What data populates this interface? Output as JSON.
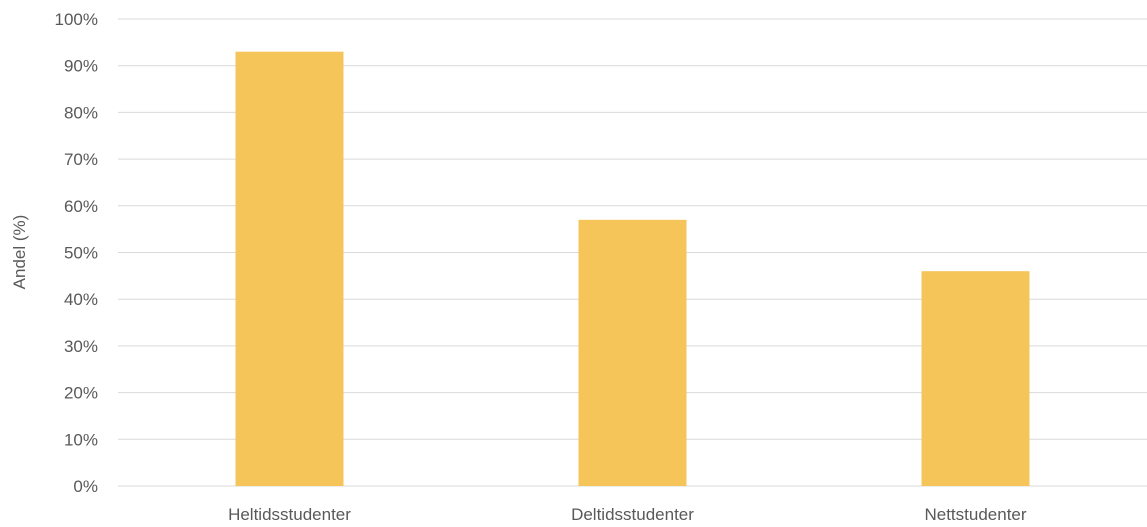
{
  "chart_data": {
    "type": "bar",
    "title": "",
    "xlabel": "",
    "ylabel": "Andel (%)",
    "categories": [
      "Heltidsstudenter",
      "Deltidsstudenter",
      "Nettstudenter"
    ],
    "values": [
      93,
      57,
      46
    ],
    "ylim": [
      0,
      100
    ],
    "yticks": [
      0,
      10,
      20,
      30,
      40,
      50,
      60,
      70,
      80,
      90,
      100
    ],
    "ytick_suffix": "%",
    "grid": true,
    "legend": "none",
    "bar_color": "#F6C55A",
    "grid_color": "#D9D9D9",
    "text_color": "#595959"
  }
}
